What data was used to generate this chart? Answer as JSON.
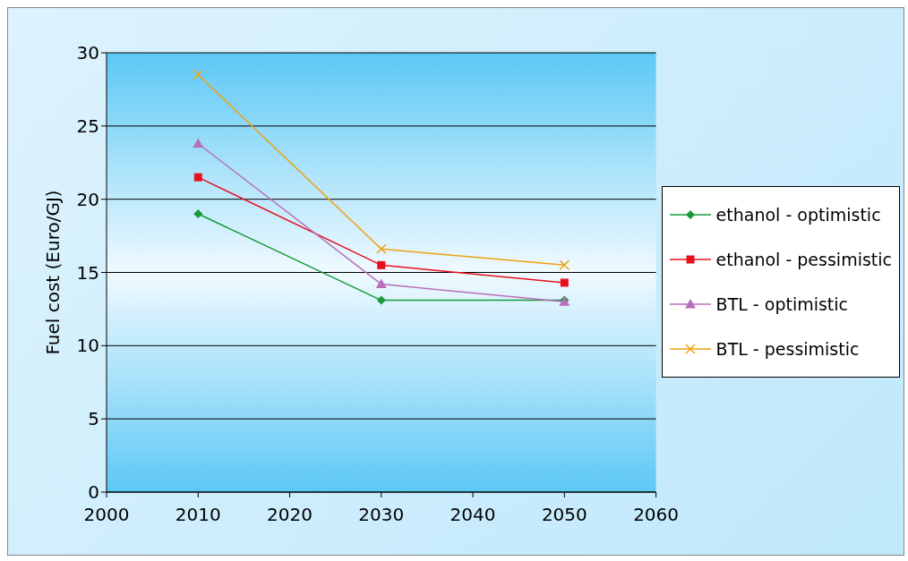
{
  "chart_data": {
    "type": "line",
    "ylabel": "Fuel cost (Euro/GJ)",
    "x": [
      2010,
      2030,
      2050
    ],
    "xlim": [
      2000,
      2060
    ],
    "xticks": [
      2000,
      2010,
      2020,
      2030,
      2040,
      2050,
      2060
    ],
    "ylim": [
      0,
      30
    ],
    "yticks": [
      0,
      5,
      10,
      15,
      20,
      25,
      30
    ],
    "grid": "y",
    "legend": "right",
    "series": [
      {
        "name": "ethanol - optimistic",
        "color": "#169a3a",
        "marker": "diamond",
        "values": [
          19.0,
          13.1,
          13.1
        ]
      },
      {
        "name": "ethanol - pessimistic",
        "color": "#e8101e",
        "marker": "square",
        "values": [
          21.5,
          15.5,
          14.3
        ]
      },
      {
        "name": "BTL - optimistic",
        "color": "#b86fb8",
        "marker": "triangle",
        "values": [
          23.8,
          14.2,
          13.0
        ]
      },
      {
        "name": "BTL - pessimistic",
        "color": "#f0a010",
        "marker": "cross",
        "values": [
          28.5,
          16.6,
          15.5
        ]
      }
    ]
  }
}
